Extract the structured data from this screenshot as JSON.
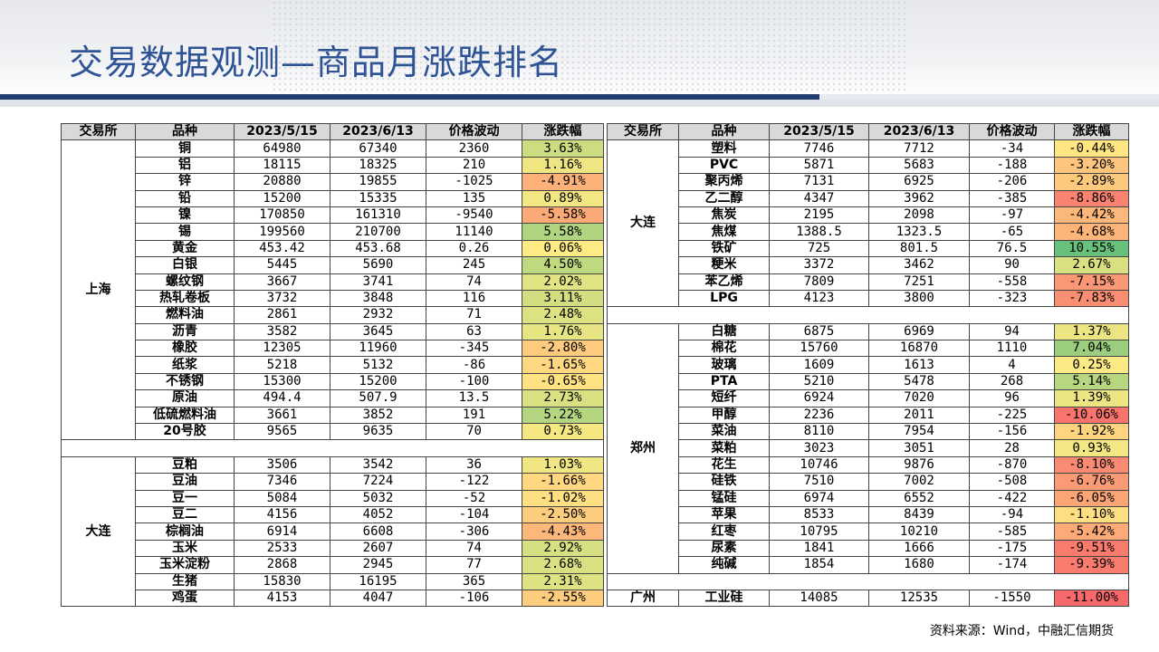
{
  "title": "交易数据观测—商品月涨跌排名",
  "headers": [
    "交易所",
    "品种",
    "2023/5/15",
    "2023/6/13",
    "价格波动",
    "涨跌幅"
  ],
  "left": {
    "groups": [
      {
        "exchange": "上海",
        "rows": [
          [
            "铜",
            "64980",
            "67340",
            "2360",
            "3.63%"
          ],
          [
            "铝",
            "18115",
            "18325",
            "210",
            "1.16%"
          ],
          [
            "锌",
            "20880",
            "19855",
            "-1025",
            "-4.91%"
          ],
          [
            "铅",
            "15200",
            "15335",
            "135",
            "0.89%"
          ],
          [
            "镍",
            "170850",
            "161310",
            "-9540",
            "-5.58%"
          ],
          [
            "锡",
            "199560",
            "210700",
            "11140",
            "5.58%"
          ],
          [
            "黄金",
            "453.42",
            "453.68",
            "0.26",
            "0.06%"
          ],
          [
            "白银",
            "5445",
            "5690",
            "245",
            "4.50%"
          ],
          [
            "螺纹钢",
            "3667",
            "3741",
            "74",
            "2.02%"
          ],
          [
            "热轧卷板",
            "3732",
            "3848",
            "116",
            "3.11%"
          ],
          [
            "燃料油",
            "2861",
            "2932",
            "71",
            "2.48%"
          ],
          [
            "沥青",
            "3582",
            "3645",
            "63",
            "1.76%"
          ],
          [
            "橡胶",
            "12305",
            "11960",
            "-345",
            "-2.80%"
          ],
          [
            "纸浆",
            "5218",
            "5132",
            "-86",
            "-1.65%"
          ],
          [
            "不锈钢",
            "15300",
            "15200",
            "-100",
            "-0.65%"
          ],
          [
            "原油",
            "494.4",
            "507.9",
            "13.5",
            "2.73%"
          ],
          [
            "低硫燃料油",
            "3661",
            "3852",
            "191",
            "5.22%"
          ],
          [
            "20号胶",
            "9565",
            "9635",
            "70",
            "0.73%"
          ]
        ]
      },
      {
        "exchange": "大连",
        "rows": [
          [
            "豆粕",
            "3506",
            "3542",
            "36",
            "1.03%"
          ],
          [
            "豆油",
            "7346",
            "7224",
            "-122",
            "-1.66%"
          ],
          [
            "豆一",
            "5084",
            "5032",
            "-52",
            "-1.02%"
          ],
          [
            "豆二",
            "4156",
            "4052",
            "-104",
            "-2.50%"
          ],
          [
            "棕榈油",
            "6914",
            "6608",
            "-306",
            "-4.43%"
          ],
          [
            "玉米",
            "2533",
            "2607",
            "74",
            "2.92%"
          ],
          [
            "玉米淀粉",
            "2868",
            "2945",
            "77",
            "2.68%"
          ],
          [
            "生猪",
            "15830",
            "16195",
            "365",
            "2.31%"
          ],
          [
            "鸡蛋",
            "4153",
            "4047",
            "-106",
            "-2.55%"
          ]
        ]
      }
    ]
  },
  "right": {
    "groups": [
      {
        "exchange": "大连",
        "rows": [
          [
            "塑料",
            "7746",
            "7712",
            "-34",
            "-0.44%"
          ],
          [
            "PVC",
            "5871",
            "5683",
            "-188",
            "-3.20%"
          ],
          [
            "聚丙烯",
            "7131",
            "6925",
            "-206",
            "-2.89%"
          ],
          [
            "乙二醇",
            "4347",
            "3962",
            "-385",
            "-8.86%"
          ],
          [
            "焦炭",
            "2195",
            "2098",
            "-97",
            "-4.42%"
          ],
          [
            "焦煤",
            "1388.5",
            "1323.5",
            "-65",
            "-4.68%"
          ],
          [
            "铁矿",
            "725",
            "801.5",
            "76.5",
            "10.55%"
          ],
          [
            "粳米",
            "3372",
            "3462",
            "90",
            "2.67%"
          ],
          [
            "苯乙烯",
            "7809",
            "7251",
            "-558",
            "-7.15%"
          ],
          [
            "LPG",
            "4123",
            "3800",
            "-323",
            "-7.83%"
          ]
        ]
      },
      {
        "exchange": "郑州",
        "rows": [
          [
            "白糖",
            "6875",
            "6969",
            "94",
            "1.37%"
          ],
          [
            "棉花",
            "15760",
            "16870",
            "1110",
            "7.04%"
          ],
          [
            "玻璃",
            "1609",
            "1613",
            "4",
            "0.25%"
          ],
          [
            "PTA",
            "5210",
            "5478",
            "268",
            "5.14%"
          ],
          [
            "短纤",
            "6924",
            "7020",
            "96",
            "1.39%"
          ],
          [
            "甲醇",
            "2236",
            "2011",
            "-225",
            "-10.06%"
          ],
          [
            "菜油",
            "8110",
            "7954",
            "-156",
            "-1.92%"
          ],
          [
            "菜粕",
            "3023",
            "3051",
            "28",
            "0.93%"
          ],
          [
            "花生",
            "10746",
            "9876",
            "-870",
            "-8.10%"
          ],
          [
            "硅铁",
            "7510",
            "7002",
            "-508",
            "-6.76%"
          ],
          [
            "锰硅",
            "6974",
            "6552",
            "-422",
            "-6.05%"
          ],
          [
            "苹果",
            "8533",
            "8439",
            "-94",
            "-1.10%"
          ],
          [
            "红枣",
            "10795",
            "10210",
            "-585",
            "-5.42%"
          ],
          [
            "尿素",
            "1841",
            "1666",
            "-175",
            "-9.51%"
          ],
          [
            "纯碱",
            "1854",
            "1680",
            "-174",
            "-9.39%"
          ]
        ]
      },
      {
        "exchange": "广州",
        "rows": [
          [
            "工业硅",
            "14085",
            "12535",
            "-1550",
            "-11.00%"
          ]
        ]
      }
    ]
  },
  "footer": "资料来源：Wind，中融汇信期货"
}
